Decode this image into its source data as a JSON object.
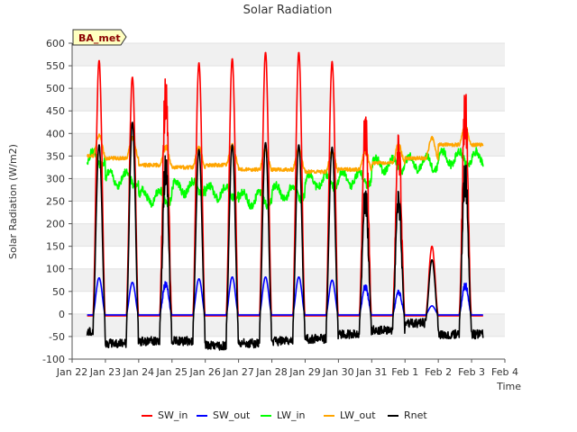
{
  "chart_data": {
    "type": "line",
    "title": "Solar Radiation",
    "xlabel": "Time",
    "ylabel": "Solar Radiation (W/m2)",
    "badge": "BA_met",
    "ylim": [
      -100,
      600
    ],
    "yticks": [
      -100,
      -50,
      0,
      50,
      100,
      150,
      200,
      250,
      300,
      350,
      400,
      450,
      500,
      550,
      600
    ],
    "xlim": [
      0,
      13
    ],
    "xticks": [
      {
        "x": 0,
        "label": "Jan 22"
      },
      {
        "x": 1,
        "label": "Jan 23"
      },
      {
        "x": 2,
        "label": "Jan 24"
      },
      {
        "x": 3,
        "label": "Jan 25"
      },
      {
        "x": 4,
        "label": "Jan 26"
      },
      {
        "x": 5,
        "label": "Jan 27"
      },
      {
        "x": 6,
        "label": "Jan 28"
      },
      {
        "x": 7,
        "label": "Jan 29"
      },
      {
        "x": 8,
        "label": "Jan 30"
      },
      {
        "x": 9,
        "label": "Jan 31"
      },
      {
        "x": 10,
        "label": "Feb 1"
      },
      {
        "x": 11,
        "label": "Feb 2"
      },
      {
        "x": 12,
        "label": "Feb 3"
      },
      {
        "x": 13,
        "label": "Feb 4"
      }
    ],
    "x_start": 0.45,
    "x_end": 12.35,
    "day_peaks_sw_in": [
      562,
      525,
      548,
      557,
      566,
      580,
      580,
      560,
      478,
      415,
      150,
      515
    ],
    "day_peaks_sw_out": [
      80,
      70,
      75,
      78,
      82,
      82,
      82,
      75,
      70,
      55,
      18,
      72
    ],
    "day_peaks_rnet": [
      375,
      425,
      370,
      365,
      375,
      380,
      375,
      370,
      300,
      285,
      120,
      350
    ],
    "lw_in_daily": [
      345,
      300,
      260,
      280,
      270,
      255,
      270,
      295,
      300,
      330,
      335,
      345
    ],
    "lw_out_daily": [
      350,
      345,
      330,
      325,
      330,
      320,
      320,
      315,
      320,
      335,
      345,
      375
    ],
    "rnet_night": [
      -40,
      -65,
      -60,
      -60,
      -70,
      -65,
      -60,
      -55,
      -45,
      -35,
      -20,
      -45
    ],
    "series": [
      {
        "name": "SW_in",
        "color": "#ff0000"
      },
      {
        "name": "SW_out",
        "color": "#0000ff"
      },
      {
        "name": "LW_in",
        "color": "#00ff00"
      },
      {
        "name": "LW_out",
        "color": "#ffa500"
      },
      {
        "name": "Rnet",
        "color": "#000000"
      }
    ],
    "grid": true,
    "legend_position": "bottom"
  }
}
